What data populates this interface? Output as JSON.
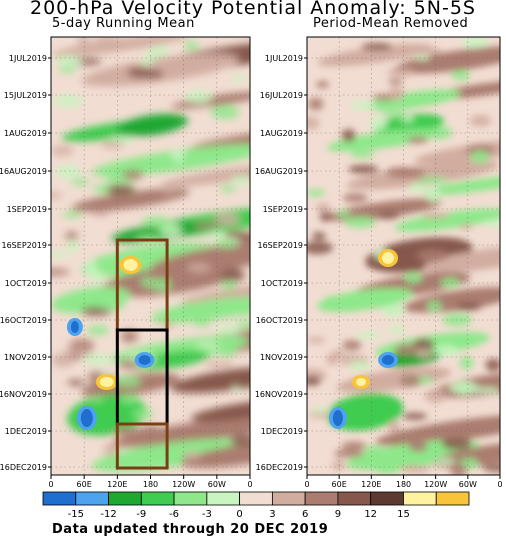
{
  "title": "200-hPa Velocity Potential Anomaly: 5N-5S",
  "footer": "Data updated through 20 DEC 2019",
  "colors": {
    "levels": [
      "#1f6fd0",
      "#4ea3ef",
      "#1fa830",
      "#3fcc4f",
      "#8ee88a",
      "#c8f5c0",
      "#f2ddd2",
      "#d1ada0",
      "#aa7d70",
      "#86584c",
      "#5c3a31",
      "#fff2a0",
      "#f8c43a"
    ],
    "box_brown": "#7a3e13",
    "box_black": "#000000"
  },
  "chart_data": [
    {
      "type": "heatmap",
      "subtitle": "5-day Running Mean",
      "x_ticks": [
        "0",
        "60E",
        "120E",
        "180",
        "120W",
        "60W",
        "0"
      ],
      "y_ticks": [
        "1JUL2019",
        "15JUL2019",
        "1AUG2019",
        "16AUG2019",
        "1SEP2019",
        "16SEP2019",
        "1OCT2019",
        "16OCT2019",
        "1NOV2019",
        "16NOV2019",
        "1DEC2019",
        "16DEC2019"
      ],
      "x_range": [
        "0",
        "0"
      ],
      "y_range": [
        "JUL2019",
        "DEC2019"
      ],
      "grid": true,
      "boxes": [
        {
          "lon_start": 120,
          "lon_end": 210,
          "from": "15SEP2019",
          "to": "23OCT2019",
          "color": "brown"
        },
        {
          "lon_start": 120,
          "lon_end": 210,
          "from": "23OCT2019",
          "to": "30NOV2019",
          "color": "black"
        },
        {
          "lon_start": 120,
          "lon_end": 210,
          "from": "30NOV2019",
          "to": "18DEC2019",
          "color": "brown"
        }
      ]
    },
    {
      "type": "heatmap",
      "subtitle": "Period-Mean Removed",
      "x_ticks": [
        "0",
        "60E",
        "120E",
        "180",
        "120W",
        "60W",
        "0"
      ],
      "y_ticks": [
        "1JUL2019",
        "16JUL2019",
        "1AUG2019",
        "16AUG2019",
        "1SEP2019",
        "16SEP2019",
        "1OCT2019",
        "16OCT2019",
        "1NOV2019",
        "16NOV2019",
        "1DEC2019",
        "16DEC2019"
      ],
      "x_range": [
        "0",
        "0"
      ],
      "y_range": [
        "JUL2019",
        "DEC2019"
      ],
      "grid": true
    }
  ],
  "colorbar": {
    "labels": [
      "-15",
      "-12",
      "-9",
      "-6",
      "-3",
      "0",
      "3",
      "6",
      "9",
      "12",
      "15"
    ]
  }
}
